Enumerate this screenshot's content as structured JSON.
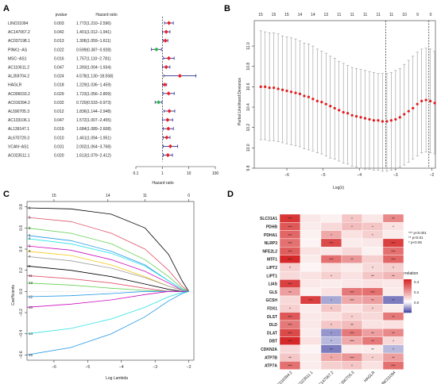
{
  "panels": [
    {
      "id": "A",
      "type": "forest"
    },
    {
      "id": "B",
      "type": "lasso-cv"
    },
    {
      "id": "C",
      "type": "lasso-path"
    },
    {
      "id": "D",
      "type": "heatmap"
    }
  ],
  "chart_data": [
    {
      "panel": "A",
      "type": "forest",
      "columns": {
        "pvalue": "pvalue",
        "hr": "Hazard ratio"
      },
      "xlabel": "Hazard ratio",
      "xscale": "log",
      "xticks": [
        "0.1",
        "1",
        "10",
        "100"
      ],
      "xlim": [
        0.1,
        100
      ],
      "rows": [
        {
          "gene": "LINC01094",
          "p": "0.003",
          "hr_text": "1.772(1.210−2.596)",
          "hr": 1.772,
          "lo": 1.21,
          "hi": 2.596,
          "color": "#e8202a"
        },
        {
          "gene": "AC147067.2",
          "p": "0.042",
          "hr_text": "1.401(1.012−1.941)",
          "hr": 1.401,
          "lo": 1.012,
          "hi": 1.941,
          "color": "#e8202a"
        },
        {
          "gene": "AC037198.1",
          "p": "0.013",
          "hr_text": "1.306(1.059−1.611)",
          "hr": 1.306,
          "lo": 1.059,
          "hi": 1.611,
          "color": "#e8202a"
        },
        {
          "gene": "PINK1−AS",
          "p": "0.022",
          "hr_text": "0.599(0.387−0.928)",
          "hr": 0.599,
          "lo": 0.387,
          "hi": 0.928,
          "color": "#2db34a"
        },
        {
          "gene": "MSC−AS1",
          "p": "0.016",
          "hr_text": "1.757(1.110−2.781)",
          "hr": 1.757,
          "lo": 1.11,
          "hi": 2.781,
          "color": "#e8202a"
        },
        {
          "gene": "AC110611.2",
          "p": "0.047",
          "hr_text": "1.393(1.004−1.934)",
          "hr": 1.393,
          "lo": 1.004,
          "hi": 1.934,
          "color": "#e8202a"
        },
        {
          "gene": "AL359704.2",
          "p": "0.024",
          "hr_text": "4.578(1.130−18.558)",
          "hr": 4.578,
          "lo": 1.13,
          "hi": 18.558,
          "color": "#e8202a"
        },
        {
          "gene": "HAGLR",
          "p": "0.018",
          "hr_text": "1.229(1.036−1.459)",
          "hr": 1.229,
          "lo": 1.036,
          "hi": 1.459,
          "color": "#e8202a"
        },
        {
          "gene": "AC006033.2",
          "p": "0.029",
          "hr_text": "1.723(1.056−2.809)",
          "hr": 1.723,
          "lo": 1.056,
          "hi": 2.809,
          "color": "#e8202a"
        },
        {
          "gene": "AC016394.2",
          "p": "0.032",
          "hr_text": "0.720(0.533−0.973)",
          "hr": 0.72,
          "lo": 0.533,
          "hi": 0.973,
          "color": "#2db34a"
        },
        {
          "gene": "AL590705.3",
          "p": "0.012",
          "hr_text": "1.836(1.144−2.948)",
          "hr": 1.836,
          "lo": 1.144,
          "hi": 2.948,
          "color": "#e8202a"
        },
        {
          "gene": "AC133106.1",
          "p": "0.047",
          "hr_text": "1.572(1.007−2.455)",
          "hr": 1.572,
          "lo": 1.007,
          "hi": 2.455,
          "color": "#e8202a"
        },
        {
          "gene": "AL139147.1",
          "p": "0.019",
          "hr_text": "1.684(1.089−2.608)",
          "hr": 1.684,
          "lo": 1.089,
          "hi": 2.608,
          "color": "#e8202a"
        },
        {
          "gene": "AL670729.3",
          "p": "0.010",
          "hr_text": "1.461(1.094−1.951)",
          "hr": 1.461,
          "lo": 1.094,
          "hi": 1.951,
          "color": "#e8202a"
        },
        {
          "gene": "VCAN−AS1",
          "p": "0.031",
          "hr_text": "2.002(1.064−3.768)",
          "hr": 2.002,
          "lo": 1.064,
          "hi": 3.768,
          "color": "#e8202a"
        },
        {
          "gene": "AC023511.1",
          "p": "0.020",
          "hr_text": "1.613(1.079−2.412)",
          "hr": 1.613,
          "lo": 1.079,
          "hi": 2.412,
          "color": "#e8202a"
        }
      ]
    },
    {
      "panel": "B",
      "type": "scatter",
      "xlabel": "Log(λ)",
      "ylabel": "Partial Likelihood Deviance",
      "xlim": [
        -6.9,
        -1.9
      ],
      "ylim": [
        9.8,
        11.25
      ],
      "xticks": [
        "−6",
        "−5",
        "−4",
        "−3",
        "−2"
      ],
      "yticks": [
        "9.8",
        "10.0",
        "10.2",
        "10.4",
        "10.6",
        "10.8",
        "11.0"
      ],
      "top_labels": [
        "15",
        "15",
        "15",
        "14",
        "14",
        "13",
        "11",
        "11",
        "11",
        "11",
        "11",
        "10",
        "9",
        "0"
      ],
      "vlines": [
        -3.27,
        -2.08
      ],
      "loglambda": [
        -6.72,
        -6.6,
        -6.48,
        -6.36,
        -6.24,
        -6.12,
        -6.0,
        -5.88,
        -5.76,
        -5.64,
        -5.52,
        -5.4,
        -5.28,
        -5.16,
        -5.04,
        -4.92,
        -4.8,
        -4.68,
        -4.56,
        -4.44,
        -4.32,
        -4.2,
        -4.08,
        -3.96,
        -3.84,
        -3.72,
        -3.6,
        -3.48,
        -3.36,
        -3.24,
        -3.12,
        -3.0,
        -2.88,
        -2.76,
        -2.64,
        -2.52,
        -2.4,
        -2.28,
        -2.16,
        -2.04,
        -1.92
      ],
      "deviance": [
        10.6,
        10.6,
        10.59,
        10.59,
        10.58,
        10.57,
        10.56,
        10.55,
        10.54,
        10.53,
        10.51,
        10.5,
        10.48,
        10.46,
        10.45,
        10.43,
        10.41,
        10.39,
        10.37,
        10.35,
        10.34,
        10.32,
        10.31,
        10.3,
        10.29,
        10.28,
        10.27,
        10.27,
        10.26,
        10.26,
        10.27,
        10.28,
        10.3,
        10.33,
        10.36,
        10.39,
        10.43,
        10.46,
        10.47,
        10.46,
        10.44
      ],
      "err_lo": [
        10.08,
        10.08,
        10.07,
        10.07,
        10.06,
        10.05,
        10.04,
        10.03,
        10.02,
        10.01,
        9.99,
        9.98,
        9.97,
        9.95,
        9.94,
        9.92,
        9.9,
        9.89,
        9.87,
        9.85,
        9.84,
        9.82,
        9.81,
        9.8,
        9.79,
        9.79,
        9.78,
        9.78,
        9.77,
        9.77,
        9.78,
        9.79,
        9.81,
        9.83,
        9.86,
        9.89,
        9.92,
        9.95,
        9.96,
        9.95,
        9.94
      ],
      "err_hi": [
        11.15,
        11.14,
        11.13,
        11.13,
        11.12,
        11.1,
        11.09,
        11.08,
        11.07,
        11.05,
        11.03,
        11.02,
        11.0,
        10.97,
        10.95,
        10.93,
        10.9,
        10.88,
        10.85,
        10.83,
        10.81,
        10.79,
        10.78,
        10.77,
        10.76,
        10.75,
        10.74,
        10.73,
        10.73,
        10.73,
        10.74,
        10.76,
        10.78,
        10.82,
        10.86,
        10.9,
        10.94,
        10.97,
        10.98,
        10.97,
        10.95
      ]
    },
    {
      "panel": "C",
      "type": "line",
      "xlabel": "Log Lambda",
      "ylabel": "Coefficients",
      "xlim": [
        -6.8,
        -1.85
      ],
      "ylim": [
        -0.65,
        0.85
      ],
      "xticks": [
        "−6",
        "−5",
        "−4",
        "−3",
        "−2"
      ],
      "yticks": [
        "−0.6",
        "−0.4",
        "−0.2",
        "0.0",
        "0.2",
        "0.4",
        "0.6",
        "0.8"
      ],
      "top_labels": [
        "15",
        "14",
        "11",
        "0"
      ],
      "left_indices": [
        "1",
        "6",
        "5",
        "4",
        "2",
        "3",
        "9",
        "7",
        "8",
        "11",
        "13",
        "12",
        "10",
        "14",
        "15"
      ],
      "series": [
        {
          "color": "#000000",
          "x": [
            -6.8,
            -5.5,
            -4.3,
            -3.3,
            -2.6,
            -2.2,
            -2.0
          ],
          "y": [
            0.79,
            0.78,
            0.73,
            0.6,
            0.35,
            0.1,
            0.0
          ]
        },
        {
          "color": "#df536b",
          "x": [
            -6.8,
            -5.5,
            -4.3,
            -3.3,
            -2.6,
            -2.2,
            -2.0
          ],
          "y": [
            0.7,
            0.66,
            0.55,
            0.4,
            0.2,
            0.05,
            0.0
          ]
        },
        {
          "color": "#61d04f",
          "x": [
            -6.8,
            -5.5,
            -4.3,
            -3.3,
            -2.6,
            -2.2,
            -2.0
          ],
          "y": [
            0.6,
            0.55,
            0.45,
            0.3,
            0.14,
            0.03,
            0.0
          ]
        },
        {
          "color": "#2297e6",
          "x": [
            -6.8,
            -5.5,
            -4.3,
            -3.3,
            -2.6,
            -2.2,
            -2.0
          ],
          "y": [
            0.53,
            0.48,
            0.38,
            0.25,
            0.1,
            0.02,
            0.0
          ]
        },
        {
          "color": "#28e2e5",
          "x": [
            -6.8,
            -5.5,
            -4.3,
            -3.3,
            -2.6,
            -2.2,
            -2.0
          ],
          "y": [
            0.5,
            0.45,
            0.36,
            0.24,
            0.1,
            0.02,
            0.0
          ]
        },
        {
          "color": "#cd0bbc",
          "x": [
            -6.8,
            -5.5,
            -4.3,
            -3.3,
            -2.6,
            -2.2,
            -2.0
          ],
          "y": [
            0.43,
            0.39,
            0.3,
            0.19,
            0.08,
            0.01,
            0.0
          ]
        },
        {
          "color": "#f5c710",
          "x": [
            -6.8,
            -5.5,
            -4.3,
            -3.3,
            -2.6,
            -2.2,
            -2.0
          ],
          "y": [
            0.38,
            0.34,
            0.25,
            0.14,
            0.05,
            0.01,
            0.0
          ]
        },
        {
          "color": "#9e9e9e",
          "x": [
            -6.8,
            -5.5,
            -4.3,
            -3.3,
            -2.6,
            -2.2,
            -2.0
          ],
          "y": [
            0.33,
            0.29,
            0.22,
            0.13,
            0.05,
            0.01,
            0.0
          ]
        },
        {
          "color": "#000000",
          "x": [
            -6.8,
            -5.5,
            -4.3,
            -3.3,
            -2.6,
            -2.2,
            -2.0
          ],
          "y": [
            0.24,
            0.2,
            0.14,
            0.07,
            0.02,
            0.0,
            0.0
          ]
        },
        {
          "color": "#df536b",
          "x": [
            -6.8,
            -5.5,
            -4.3,
            -3.3,
            -2.6,
            -2.2,
            -2.0
          ],
          "y": [
            0.15,
            0.12,
            0.08,
            0.03,
            0.0,
            0.0,
            0.0
          ]
        },
        {
          "color": "#61d04f",
          "x": [
            -6.8,
            -5.5,
            -4.3,
            -3.3,
            -2.6,
            -2.2,
            -2.0
          ],
          "y": [
            0.08,
            0.06,
            0.03,
            0.01,
            0.0,
            0.0,
            0.0
          ]
        },
        {
          "color": "#2297e6",
          "x": [
            -6.8,
            -5.5,
            -4.3,
            -3.3,
            -2.6,
            -2.2,
            -2.0
          ],
          "y": [
            -0.05,
            -0.04,
            -0.02,
            0.0,
            0.0,
            0.0,
            0.0
          ]
        },
        {
          "color": "#cd0bbc",
          "x": [
            -6.8,
            -5.5,
            -4.3,
            -3.3,
            -2.6,
            -2.2,
            -2.0
          ],
          "y": [
            -0.15,
            -0.12,
            -0.08,
            -0.03,
            0.0,
            0.0,
            0.0
          ]
        },
        {
          "color": "#28e2e5",
          "x": [
            -6.8,
            -5.5,
            -4.3,
            -3.3,
            -2.6,
            -2.2,
            -2.0
          ],
          "y": [
            -0.4,
            -0.35,
            -0.26,
            -0.15,
            -0.05,
            -0.01,
            0.0
          ]
        },
        {
          "color": "#2297e6",
          "x": [
            -6.8,
            -5.5,
            -4.3,
            -3.3,
            -2.6,
            -2.2,
            -2.0
          ],
          "y": [
            -0.6,
            -0.53,
            -0.4,
            -0.24,
            -0.09,
            -0.02,
            0.0
          ]
        }
      ]
    },
    {
      "panel": "D",
      "type": "heatmap",
      "rows": [
        "SLC31A1",
        "PDHB",
        "PDHA1",
        "NLRP3",
        "NFE2L2",
        "MTF1",
        "LIPT2",
        "LIPT1",
        "LIAS",
        "GLS",
        "GCSH",
        "FDX1",
        "DLST",
        "DLD",
        "DLAT",
        "DBT",
        "CDKN2A",
        "ATP7B",
        "ATP7A"
      ],
      "columns": [
        "AC016394.2",
        "AC023511.1",
        "AC147067.2",
        "AL590705.3",
        "HAGLR",
        "LINC01094"
      ],
      "values": [
        [
          0.42,
          0.05,
          0.03,
          0.12,
          0.05,
          0.25
        ],
        [
          0.35,
          0.04,
          0.08,
          0.14,
          0.12,
          0.06
        ],
        [
          0.32,
          0.03,
          0.18,
          0.06,
          0.1,
          0.04
        ],
        [
          0.3,
          0.02,
          0.38,
          0.04,
          0.05,
          0.4
        ],
        [
          0.34,
          0.06,
          0.05,
          0.08,
          0.03,
          0.3
        ],
        [
          0.45,
          0.04,
          0.3,
          0.22,
          0.1,
          0.32
        ],
        [
          0.1,
          0.02,
          0.06,
          0.04,
          0.08,
          0.1
        ],
        [
          0.08,
          0.06,
          0.1,
          0.06,
          0.12,
          0.15
        ],
        [
          0.4,
          0.05,
          0.04,
          0.05,
          0.06,
          0.05
        ],
        [
          0.2,
          0.03,
          0.06,
          0.28,
          0.3,
          0.04
        ],
        [
          0.08,
          0.4,
          -0.1,
          0.18,
          0.2,
          -0.15
        ],
        [
          0.1,
          0.04,
          0.12,
          0.06,
          0.1,
          0.04
        ],
        [
          0.35,
          0.05,
          0.06,
          0.1,
          0.08,
          0.28
        ],
        [
          0.28,
          0.05,
          0.12,
          0.14,
          0.06,
          0.06
        ],
        [
          0.38,
          0.04,
          -0.12,
          0.28,
          0.2,
          0.25
        ],
        [
          0.46,
          0.06,
          -0.08,
          0.18,
          0.28,
          0.08
        ],
        [
          0.08,
          0.02,
          -0.15,
          0.04,
          0.04,
          -0.08
        ],
        [
          0.12,
          0.04,
          0.18,
          0.22,
          0.1,
          0.2
        ],
        [
          0.3,
          0.04,
          0.1,
          0.12,
          0.06,
          0.3
        ]
      ],
      "stars": [
        [
          "***",
          "",
          "",
          "*",
          "",
          "**"
        ],
        [
          "***",
          "",
          "",
          "*",
          "*",
          "*"
        ],
        [
          "***",
          "",
          "*",
          "",
          "*",
          ""
        ],
        [
          "***",
          "",
          "***",
          "",
          "",
          "***"
        ],
        [
          "***",
          "",
          "",
          "",
          "",
          "***"
        ],
        [
          "***",
          "",
          "***",
          "**",
          "",
          "***"
        ],
        [
          "*",
          "",
          "",
          "",
          "*",
          "*"
        ],
        [
          "",
          "",
          "*",
          "",
          "**",
          "**"
        ],
        [
          "***",
          "",
          "",
          "",
          "",
          ""
        ],
        [
          "**",
          "",
          "",
          "***",
          "***",
          ""
        ],
        [
          "",
          "***",
          "*",
          "***",
          "**",
          "**"
        ],
        [
          "*",
          "",
          "*",
          "",
          "*",
          ""
        ],
        [
          "***",
          "",
          "",
          "*",
          "",
          "**"
        ],
        [
          "***",
          "",
          "*",
          "**",
          "",
          ""
        ],
        [
          "***",
          "",
          "*",
          "***",
          "**",
          "**"
        ],
        [
          "***",
          "",
          "*",
          "***",
          "**",
          "*"
        ],
        [
          "",
          "",
          "**",
          "",
          "**",
          "*"
        ],
        [
          "**",
          "",
          "*",
          "***",
          "*",
          "**"
        ],
        [
          "***",
          "",
          "",
          "*",
          "",
          "***"
        ]
      ],
      "legend_title": "Correlation",
      "legend_ticks": [
        "0.4",
        "0.2",
        "0.0"
      ],
      "clim": [
        -0.2,
        0.45
      ],
      "sig_legend": [
        "*** p<0.001",
        "** p<0.01",
        "* p<0.05"
      ]
    }
  ]
}
